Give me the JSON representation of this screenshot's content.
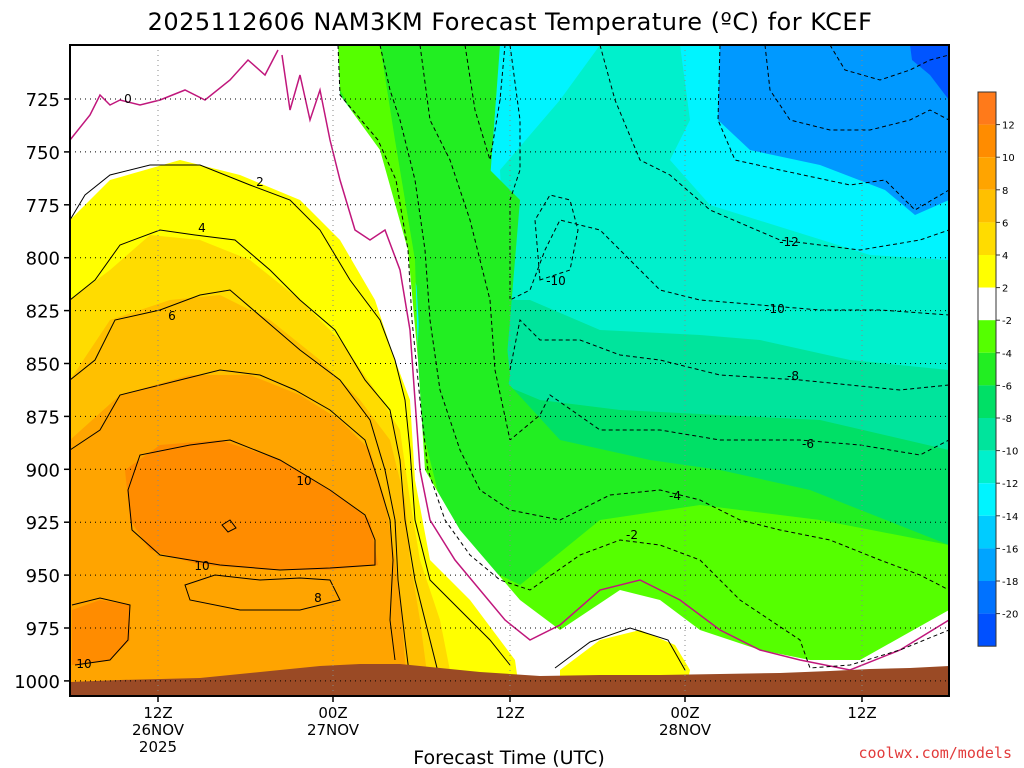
{
  "chart_data": {
    "type": "heatmap",
    "title": "2025112606 NAM3KM Forecast Temperature (ºC) for KCEF",
    "xlabel": "Forecast Time (UTC)",
    "ylabel": "",
    "y_ticks": [
      "725",
      "750",
      "775",
      "800",
      "825",
      "850",
      "875",
      "900",
      "925",
      "950",
      "975",
      "1000"
    ],
    "x_ticks": [
      {
        "line1": "12Z",
        "line2": "26NOV",
        "line3": "2025"
      },
      {
        "line1": "00Z",
        "line2": "27NOV",
        "line3": ""
      },
      {
        "line1": "12Z",
        "line2": "",
        "line3": ""
      },
      {
        "line1": "00Z",
        "line2": "28NOV",
        "line3": ""
      },
      {
        "line1": "12Z",
        "line2": "",
        "line3": ""
      }
    ],
    "colorbar": {
      "labels": [
        "12",
        "10",
        "8",
        "6",
        "4",
        "2",
        "-2",
        "-4",
        "-6",
        "-8",
        "-10",
        "-12",
        "-14",
        "-16",
        "-18",
        "-20"
      ],
      "colors": [
        "#ff7a1a",
        "#ff8c00",
        "#ffa400",
        "#ffc000",
        "#ffdc00",
        "#ffff00",
        "#ffffff",
        "#55ff00",
        "#22ee22",
        "#00e066",
        "#00e49c",
        "#00f0cc",
        "#00f4ff",
        "#00ccff",
        "#00a4ff",
        "#0072ff",
        "#0050ff"
      ]
    },
    "contour_labels": [
      {
        "text": "0"
      },
      {
        "text": "2"
      },
      {
        "text": "4"
      },
      {
        "text": "6"
      },
      {
        "text": "10"
      },
      {
        "text": "10"
      },
      {
        "text": "8"
      },
      {
        "text": "10"
      },
      {
        "text": "-2"
      },
      {
        "text": "-4"
      },
      {
        "text": "-6"
      },
      {
        "text": "-8"
      },
      {
        "text": "-10"
      },
      {
        "text": "-10"
      },
      {
        "text": "-12"
      }
    ]
  },
  "credit": "coolwx.com/models"
}
